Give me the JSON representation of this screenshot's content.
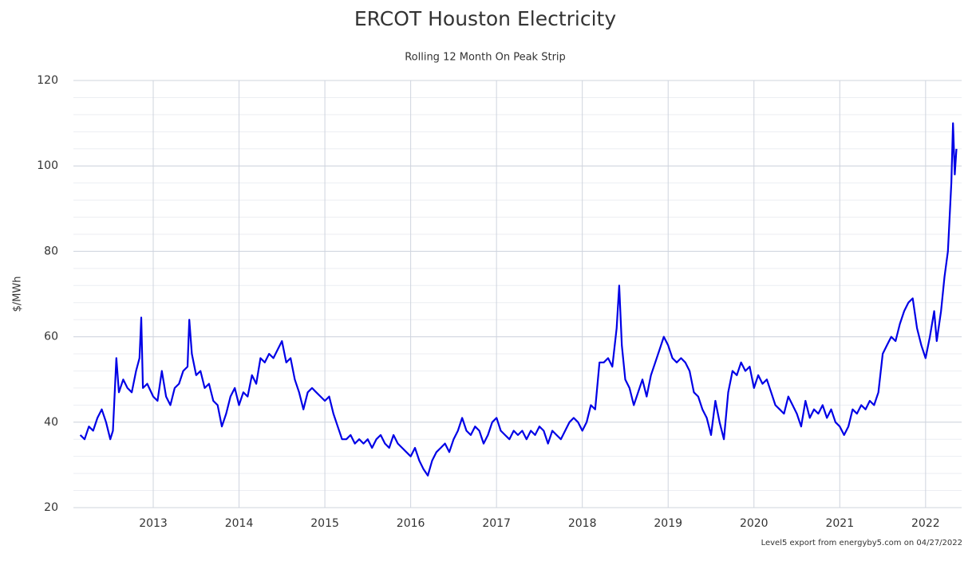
{
  "chart_data": {
    "type": "line",
    "title": "ERCOT Houston Electricity",
    "subtitle": "Rolling 12 Month On Peak Strip",
    "y_label": "$/MWh",
    "note": "Level5 export from energyby5.com on 04/27/2022",
    "xlim": [
      2012.07,
      2022.42
    ],
    "xticks": [
      2013,
      2014,
      2015,
      2016,
      2017,
      2018,
      2019,
      2020,
      2021,
      2022
    ],
    "ylim": [
      20,
      120
    ],
    "yticks": [
      20,
      40,
      60,
      80,
      100,
      120
    ],
    "minor_grid_step": 4,
    "grid": true,
    "x": [
      2012.15,
      2012.2,
      2012.25,
      2012.3,
      2012.35,
      2012.4,
      2012.45,
      2012.5,
      2012.53,
      2012.57,
      2012.6,
      2012.65,
      2012.7,
      2012.75,
      2012.8,
      2012.84,
      2012.86,
      2012.88,
      2012.93,
      2013.0,
      2013.05,
      2013.1,
      2013.15,
      2013.2,
      2013.25,
      2013.3,
      2013.35,
      2013.4,
      2013.42,
      2013.45,
      2013.5,
      2013.55,
      2013.6,
      2013.65,
      2013.7,
      2013.75,
      2013.8,
      2013.85,
      2013.9,
      2013.95,
      2014.0,
      2014.05,
      2014.1,
      2014.15,
      2014.2,
      2014.25,
      2014.3,
      2014.35,
      2014.4,
      2014.45,
      2014.5,
      2014.55,
      2014.6,
      2014.65,
      2014.7,
      2014.75,
      2014.8,
      2014.85,
      2014.9,
      2014.95,
      2015.0,
      2015.05,
      2015.1,
      2015.15,
      2015.2,
      2015.25,
      2015.3,
      2015.35,
      2015.4,
      2015.45,
      2015.5,
      2015.55,
      2015.6,
      2015.65,
      2015.7,
      2015.75,
      2015.8,
      2015.85,
      2015.9,
      2015.95,
      2016.0,
      2016.05,
      2016.1,
      2016.15,
      2016.2,
      2016.25,
      2016.3,
      2016.35,
      2016.4,
      2016.45,
      2016.5,
      2016.55,
      2016.6,
      2016.65,
      2016.7,
      2016.75,
      2016.8,
      2016.85,
      2016.9,
      2016.95,
      2017.0,
      2017.05,
      2017.1,
      2017.15,
      2017.2,
      2017.25,
      2017.3,
      2017.35,
      2017.4,
      2017.45,
      2017.5,
      2017.55,
      2017.6,
      2017.65,
      2017.7,
      2017.75,
      2017.8,
      2017.85,
      2017.9,
      2017.95,
      2018.0,
      2018.05,
      2018.1,
      2018.15,
      2018.2,
      2018.25,
      2018.3,
      2018.35,
      2018.4,
      2018.43,
      2018.46,
      2018.5,
      2018.55,
      2018.6,
      2018.65,
      2018.7,
      2018.75,
      2018.8,
      2018.85,
      2018.9,
      2018.95,
      2019.0,
      2019.05,
      2019.1,
      2019.15,
      2019.2,
      2019.25,
      2019.3,
      2019.35,
      2019.4,
      2019.45,
      2019.5,
      2019.55,
      2019.6,
      2019.65,
      2019.7,
      2019.75,
      2019.8,
      2019.85,
      2019.9,
      2019.95,
      2020.0,
      2020.05,
      2020.1,
      2020.15,
      2020.2,
      2020.25,
      2020.3,
      2020.35,
      2020.4,
      2020.45,
      2020.5,
      2020.55,
      2020.6,
      2020.65,
      2020.7,
      2020.75,
      2020.8,
      2020.85,
      2020.9,
      2020.95,
      2021.0,
      2021.05,
      2021.1,
      2021.15,
      2021.2,
      2021.25,
      2021.3,
      2021.35,
      2021.4,
      2021.45,
      2021.5,
      2021.55,
      2021.6,
      2021.65,
      2021.7,
      2021.75,
      2021.8,
      2021.85,
      2021.9,
      2021.95,
      2022.0,
      2022.05,
      2022.1,
      2022.13,
      2022.18,
      2022.22,
      2022.26,
      2022.3,
      2022.32,
      2022.34,
      2022.36
    ],
    "series": [
      {
        "name": "On Peak Strip",
        "color": "#0000e6",
        "values": [
          37,
          36,
          39,
          38,
          41,
          43,
          40,
          36,
          38,
          55,
          47,
          50,
          48,
          47,
          52,
          55,
          64.5,
          48,
          49,
          46,
          45,
          52,
          46,
          44,
          48,
          49,
          52,
          53,
          64,
          56,
          51,
          52,
          48,
          49,
          45,
          44,
          39,
          42,
          46,
          48,
          44,
          47,
          46,
          51,
          49,
          55,
          54,
          56,
          55,
          57,
          59,
          54,
          55,
          50,
          47,
          43,
          47,
          48,
          47,
          46,
          45,
          46,
          42,
          39,
          36,
          36,
          37,
          35,
          36,
          35,
          36,
          34,
          36,
          37,
          35,
          34,
          37,
          35,
          34,
          33,
          32,
          34,
          31,
          29,
          27.5,
          31,
          33,
          34,
          35,
          33,
          36,
          38,
          41,
          38,
          37,
          39,
          38,
          35,
          37,
          40,
          41,
          38,
          37,
          36,
          38,
          37,
          38,
          36,
          38,
          37,
          39,
          38,
          35,
          38,
          37,
          36,
          38,
          40,
          41,
          40,
          38,
          40,
          44,
          43,
          54,
          54,
          55,
          53,
          62,
          72,
          58,
          50,
          48,
          44,
          47,
          50,
          46,
          51,
          54,
          57,
          60,
          58,
          55,
          54,
          55,
          54,
          52,
          47,
          46,
          43,
          41,
          37,
          45,
          40,
          36,
          47,
          52,
          51,
          54,
          52,
          53,
          48,
          51,
          49,
          50,
          47,
          44,
          43,
          42,
          46,
          44,
          42,
          39,
          45,
          41,
          43,
          42,
          44,
          41,
          43,
          40,
          39,
          37,
          39,
          43,
          42,
          44,
          43,
          45,
          44,
          47,
          56,
          58,
          60,
          59,
          63,
          66,
          68,
          69,
          62,
          58,
          55,
          60,
          66,
          59,
          66,
          74,
          80,
          96,
          110,
          98,
          104
        ]
      }
    ]
  }
}
